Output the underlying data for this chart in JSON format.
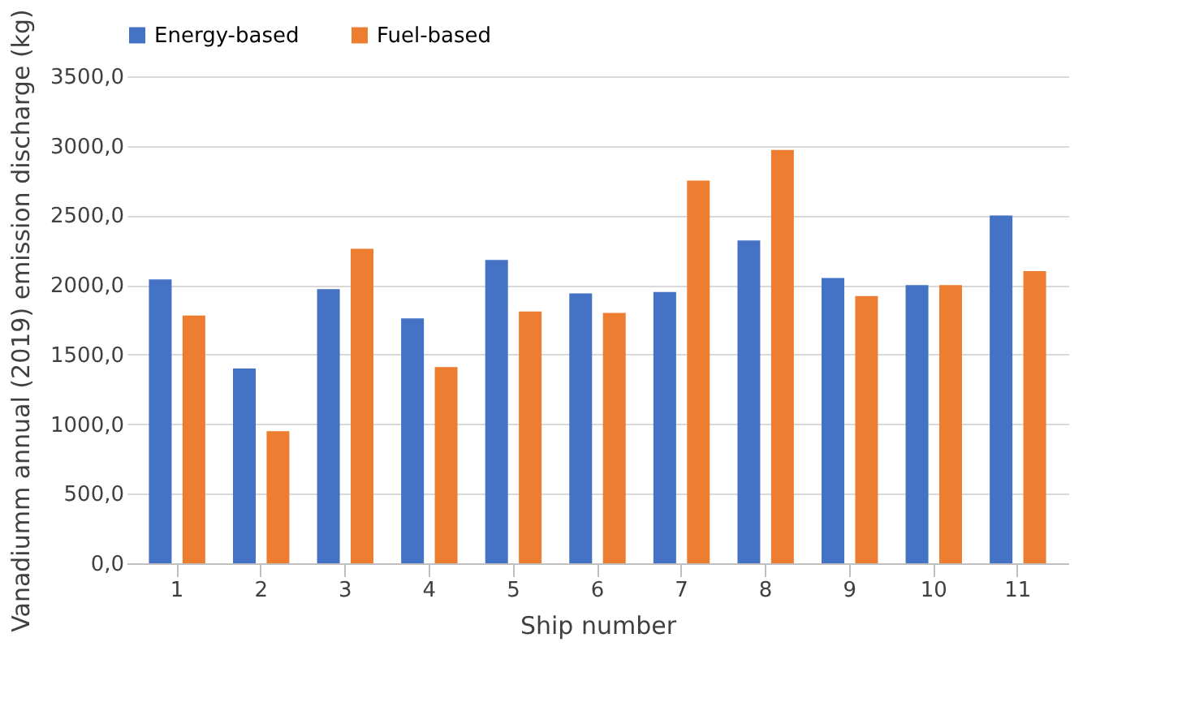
{
  "chart_data": {
    "type": "bar",
    "xlabel": "Ship number",
    "ylabel": "Vanadiumm annual (2019) emission discharge (kg)",
    "categories": [
      "1",
      "2",
      "3",
      "4",
      "5",
      "6",
      "7",
      "8",
      "9",
      "10",
      "11"
    ],
    "series": [
      {
        "name": "Energy-based",
        "color": "#4472c4",
        "values": [
          2040,
          1400,
          1970,
          1760,
          2180,
          1940,
          1950,
          2320,
          2050,
          2000,
          2500
        ]
      },
      {
        "name": "Fuel-based",
        "color": "#ed7d31",
        "values": [
          1780,
          950,
          2260,
          1410,
          1810,
          1800,
          2750,
          2970,
          1920,
          2000,
          2100
        ]
      }
    ],
    "ylim": [
      0,
      3500
    ],
    "yticks": [
      {
        "value": 0,
        "label": "0,0"
      },
      {
        "value": 500,
        "label": "500,0"
      },
      {
        "value": 1000,
        "label": "1000,0"
      },
      {
        "value": 1500,
        "label": "1500,0"
      },
      {
        "value": 2000,
        "label": "2000,0"
      },
      {
        "value": 2500,
        "label": "2500,0"
      },
      {
        "value": 3000,
        "label": "3000,0"
      },
      {
        "value": 3500,
        "label": "3500,0"
      }
    ],
    "grid": "y",
    "legend": "top"
  }
}
